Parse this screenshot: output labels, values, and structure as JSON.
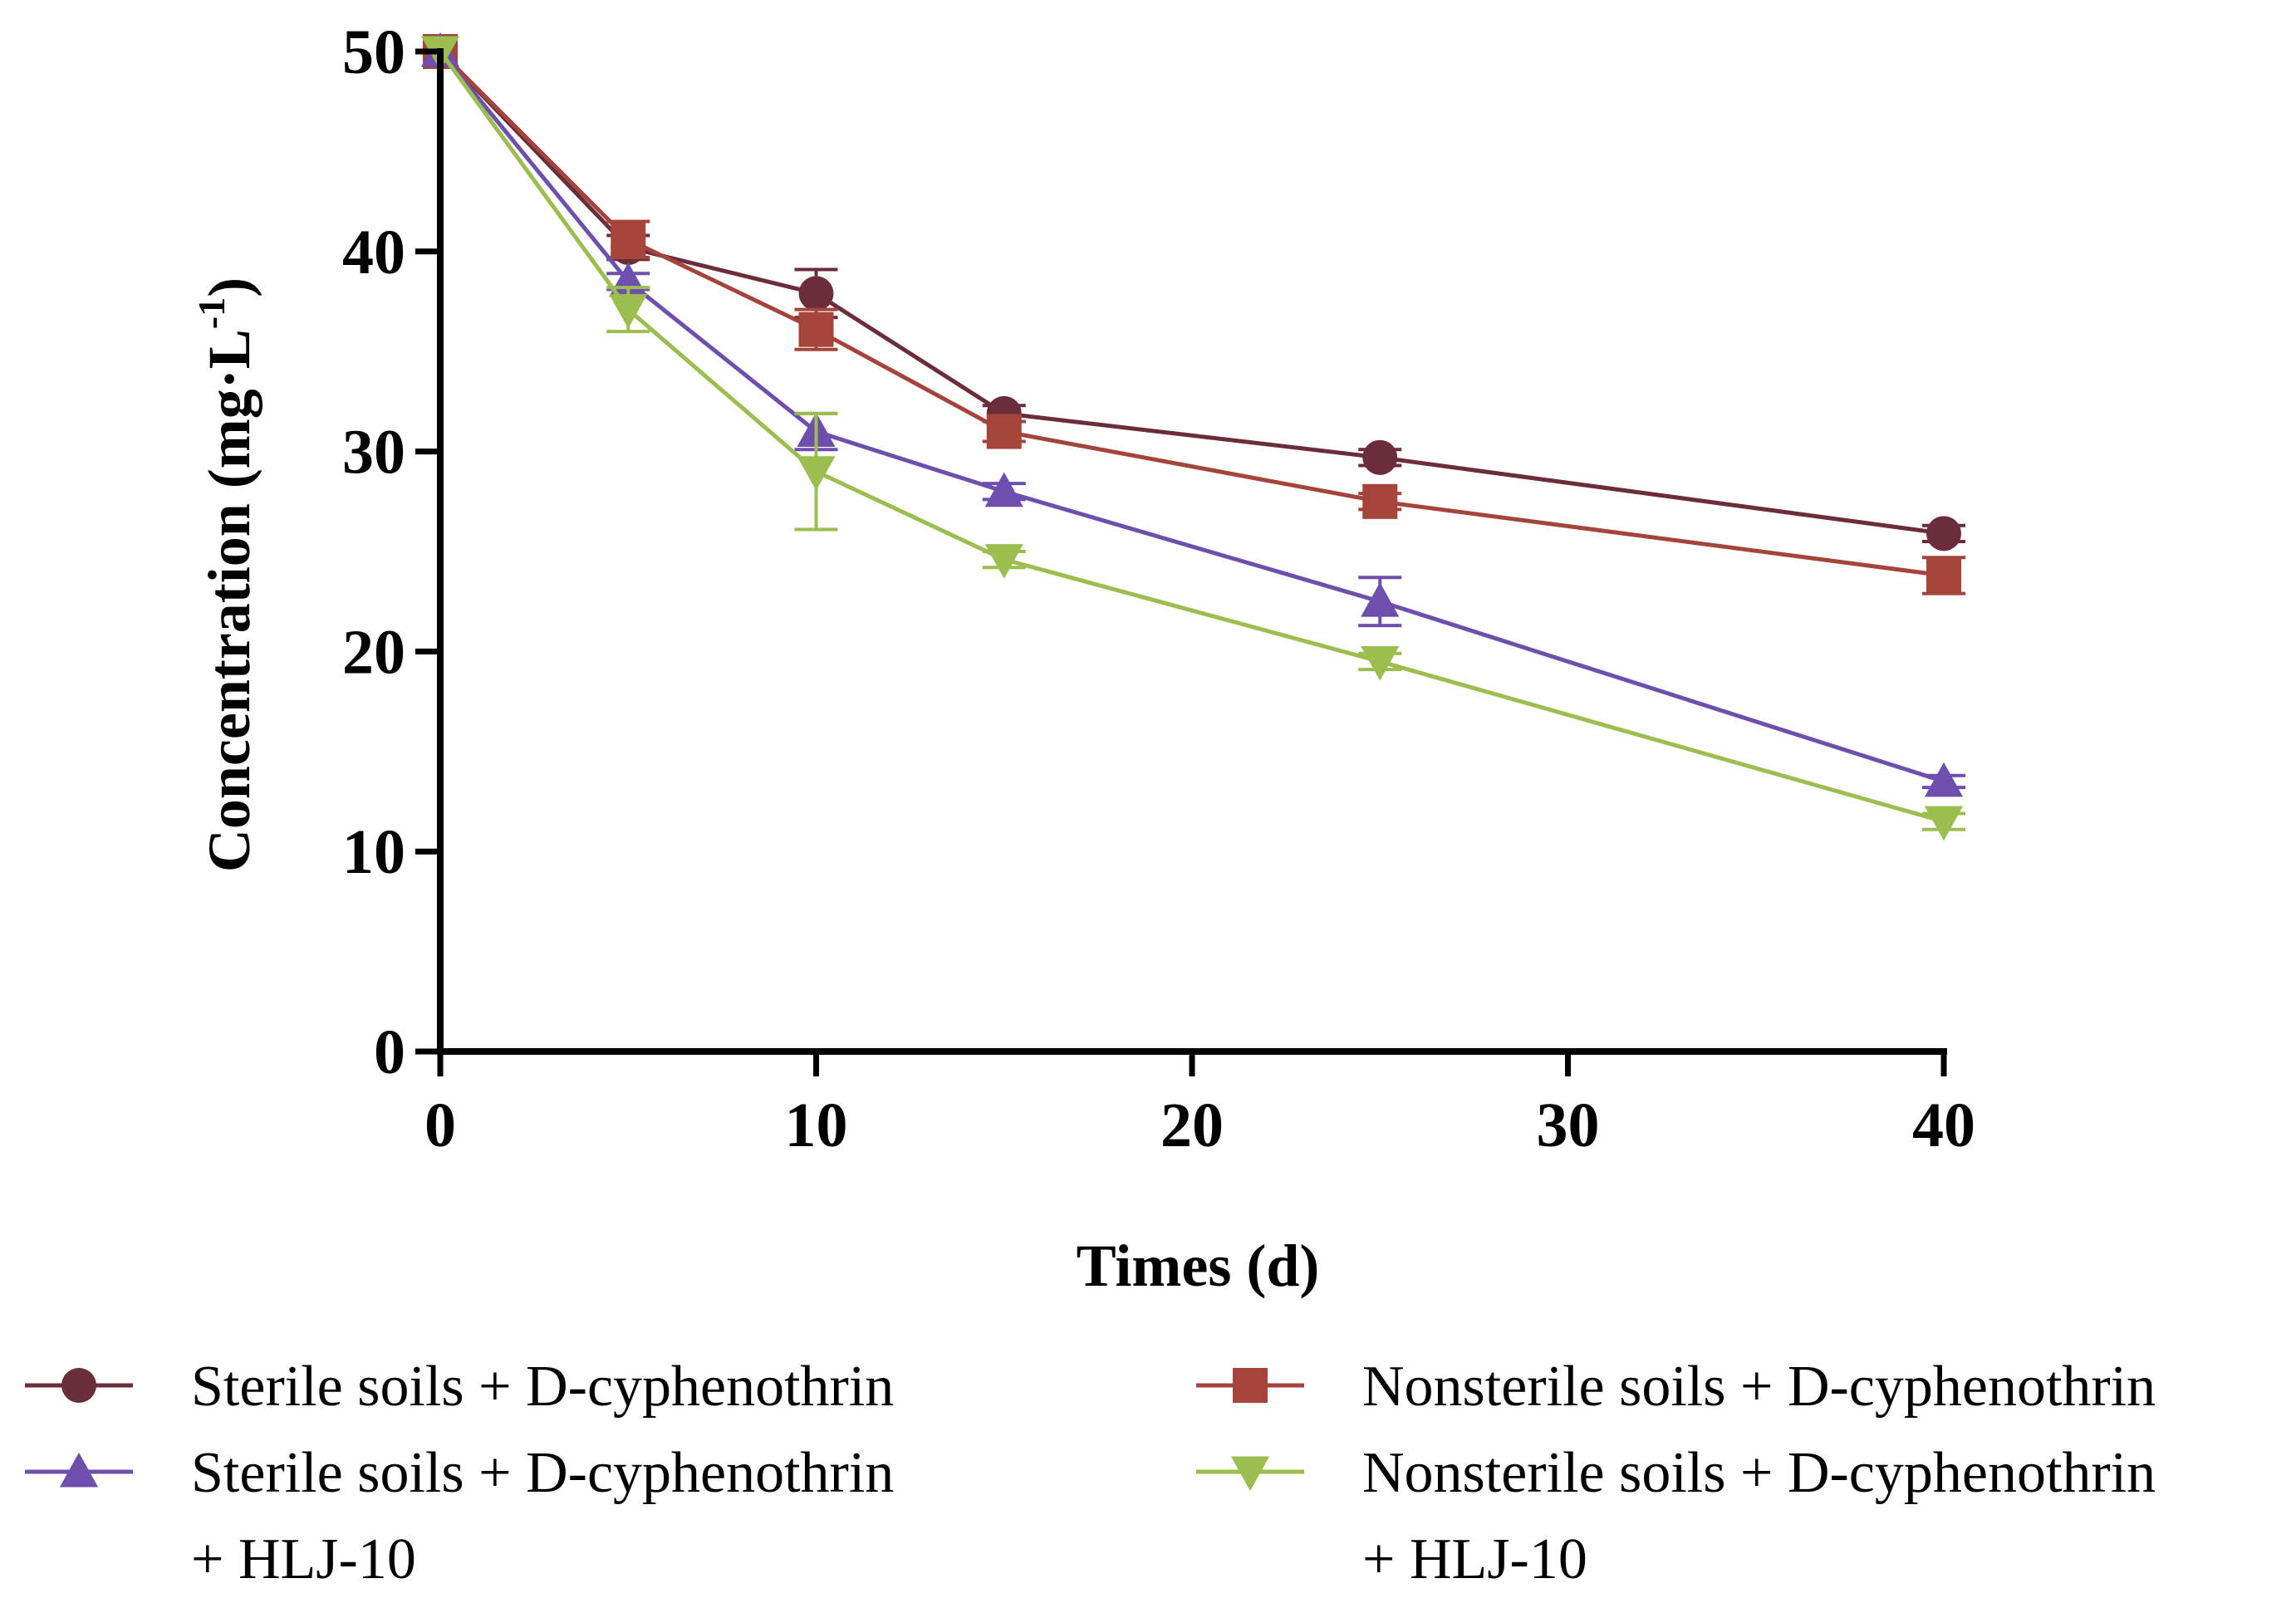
{
  "chart_data": {
    "type": "line",
    "title": "",
    "xlabel": "Times (d)",
    "ylabel": "Concentration (mg·L",
    "ylabel_sup": "-1",
    "ylabel_close": ")",
    "xlim": [
      0,
      40
    ],
    "ylim": [
      0,
      50
    ],
    "xticks": [
      0,
      10,
      20,
      30,
      40
    ],
    "yticks": [
      0,
      10,
      20,
      30,
      40,
      50
    ],
    "grid": false,
    "legend_position": "bottom",
    "x": [
      0,
      5,
      10,
      15,
      25,
      40
    ],
    "series": [
      {
        "name": "Sterile soils + D-cyphenothrin",
        "legend_lines": [
          "Sterile soils + D-cyphenothrin"
        ],
        "color": "#6B2D3A",
        "marker": "circle",
        "values": [
          50,
          40.2,
          37.9,
          31.9,
          29.7,
          25.9
        ],
        "errors": [
          0,
          0.6,
          1.2,
          0.4,
          0.4,
          0.4
        ]
      },
      {
        "name": "Nonsterile soils + D-cyphenothrin",
        "legend_lines": [
          "Nonsterile soils + D-cyphenothrin"
        ],
        "color": "#A5443A",
        "marker": "square",
        "values": [
          50,
          40.6,
          36.1,
          31.0,
          27.5,
          23.8
        ],
        "errors": [
          0,
          0.9,
          1.0,
          0.5,
          0.4,
          0.9
        ]
      },
      {
        "name": "Sterile soils + D-cyphenothrin + HLJ-10",
        "legend_lines": [
          "Sterile soils + D-cyphenothrin",
          "+ HLJ-10"
        ],
        "color": "#6E4FAE",
        "marker": "triangle-up",
        "values": [
          50,
          38.5,
          31.0,
          28.0,
          22.5,
          13.5
        ],
        "errors": [
          0,
          0.4,
          0.9,
          0.4,
          1.2,
          0.3
        ]
      },
      {
        "name": "Nonsterile soils + D-cyphenothrin + HLJ-10",
        "legend_lines": [
          "Nonsterile soils + D-cyphenothrin",
          "+ HLJ-10"
        ],
        "color": "#9BBE4F",
        "marker": "triangle-down",
        "values": [
          50,
          37.1,
          29.0,
          24.6,
          19.5,
          11.5
        ],
        "errors": [
          0,
          1.1,
          2.9,
          0.4,
          0.4,
          0.4
        ]
      }
    ]
  }
}
